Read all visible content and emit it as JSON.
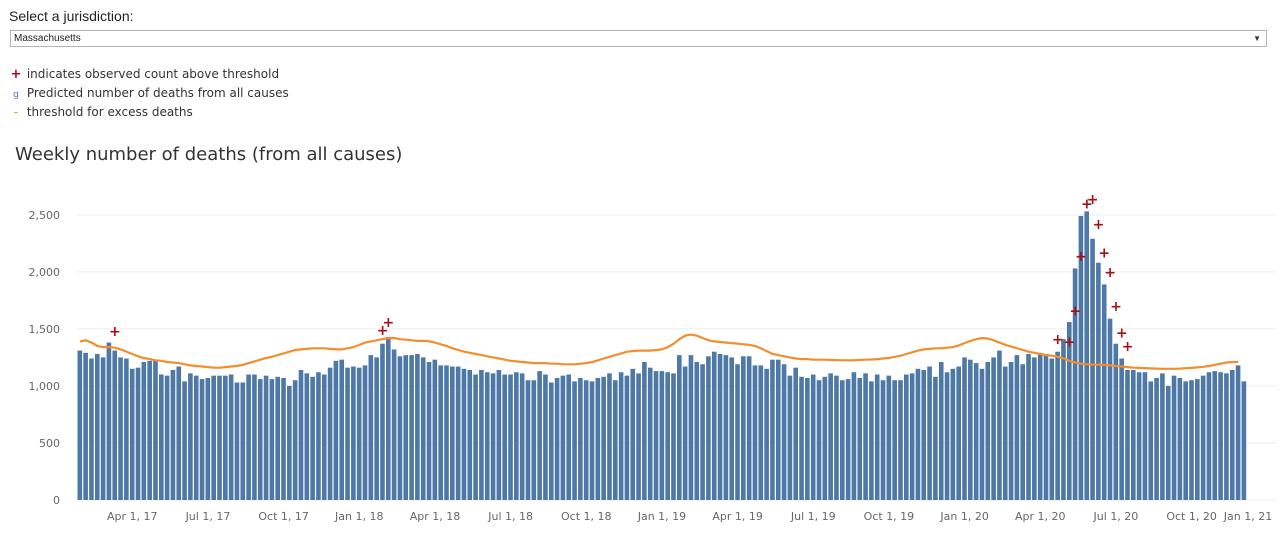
{
  "selector": {
    "label": "Select a jurisdiction:",
    "value": "Massachusetts"
  },
  "legend": [
    {
      "icon": "plus-icon",
      "symbol": "+",
      "text": "indicates observed count above threshold"
    },
    {
      "icon": "bar-swatch-icon",
      "symbol": "g",
      "text": "Predicted number of deaths from all causes"
    },
    {
      "icon": "line-swatch-icon",
      "symbol": "-",
      "text": "threshold for excess deaths"
    }
  ],
  "colors": {
    "bars": "#4e79a7",
    "threshold": "#f28e2b",
    "marker": "#a50f15"
  },
  "chart_data": {
    "type": "bar",
    "title": "Weekly number of deaths (from all causes)",
    "xlabel": "",
    "ylabel": "",
    "ylim": [
      0,
      2700
    ],
    "yticks": [
      {
        "value": 0,
        "label": "0"
      },
      {
        "value": 500,
        "label": "500"
      },
      {
        "value": 1000,
        "label": "1,000"
      },
      {
        "value": 1500,
        "label": "1,500"
      },
      {
        "value": 2000,
        "label": "2,000"
      },
      {
        "value": 2500,
        "label": "2,500"
      }
    ],
    "xticks": [
      {
        "week": 9,
        "label": "Apr 1, 17"
      },
      {
        "week": 22,
        "label": "Jul 1, 17"
      },
      {
        "week": 35,
        "label": "Oct 1, 17"
      },
      {
        "week": 48,
        "label": "Jan 1, 18"
      },
      {
        "week": 61,
        "label": "Apr 1, 18"
      },
      {
        "week": 74,
        "label": "Jul 1, 18"
      },
      {
        "week": 87,
        "label": "Oct 1, 18"
      },
      {
        "week": 100,
        "label": "Jan 1, 19"
      },
      {
        "week": 113,
        "label": "Apr 1, 19"
      },
      {
        "week": 126,
        "label": "Jul 1, 19"
      },
      {
        "week": 139,
        "label": "Oct 1, 19"
      },
      {
        "week": 152,
        "label": "Jan 1, 20"
      },
      {
        "week": 165,
        "label": "Apr 1, 20"
      },
      {
        "week": 178,
        "label": "Jul 1, 20"
      },
      {
        "week": 191,
        "label": "Oct 1, 20"
      },
      {
        "week": 204,
        "label": "Jan 1, 21"
      }
    ],
    "week_count": 206,
    "series": [
      {
        "name": "Predicted number of deaths from all causes",
        "values": [
          1310,
          1290,
          1240,
          1280,
          1250,
          1380,
          1310,
          1250,
          1240,
          1150,
          1160,
          1210,
          1220,
          1230,
          1100,
          1090,
          1140,
          1170,
          1040,
          1110,
          1090,
          1060,
          1070,
          1090,
          1090,
          1090,
          1100,
          1030,
          1030,
          1100,
          1100,
          1060,
          1090,
          1060,
          1080,
          1070,
          1000,
          1050,
          1140,
          1110,
          1080,
          1120,
          1100,
          1160,
          1220,
          1230,
          1160,
          1170,
          1160,
          1180,
          1270,
          1250,
          1370,
          1430,
          1320,
          1260,
          1270,
          1270,
          1280,
          1250,
          1210,
          1230,
          1180,
          1180,
          1170,
          1170,
          1150,
          1140,
          1100,
          1140,
          1120,
          1110,
          1140,
          1100,
          1100,
          1120,
          1110,
          1050,
          1050,
          1130,
          1100,
          1030,
          1070,
          1090,
          1100,
          1040,
          1070,
          1050,
          1040,
          1070,
          1080,
          1110,
          1050,
          1120,
          1090,
          1150,
          1110,
          1210,
          1160,
          1130,
          1130,
          1120,
          1110,
          1270,
          1170,
          1270,
          1210,
          1190,
          1260,
          1300,
          1280,
          1270,
          1250,
          1190,
          1260,
          1260,
          1180,
          1180,
          1150,
          1230,
          1230,
          1190,
          1090,
          1160,
          1080,
          1070,
          1100,
          1050,
          1080,
          1110,
          1090,
          1050,
          1060,
          1120,
          1070,
          1110,
          1040,
          1100,
          1050,
          1090,
          1050,
          1050,
          1100,
          1110,
          1150,
          1140,
          1170,
          1080,
          1210,
          1120,
          1150,
          1170,
          1250,
          1230,
          1200,
          1150,
          1210,
          1250,
          1310,
          1170,
          1210,
          1270,
          1190,
          1280,
          1250,
          1290,
          1270,
          1240,
          1300,
          1410,
          1560,
          2030,
          2490,
          2530,
          2290,
          2080,
          1890,
          1590,
          1370,
          1240,
          1140,
          1140,
          1120,
          1120,
          1040,
          1070,
          1110,
          1000,
          1090,
          1070,
          1040,
          1050,
          1060,
          1090,
          1120,
          1130,
          1120,
          1110,
          1140,
          1180,
          1040
        ]
      },
      {
        "name": "threshold for excess deaths",
        "values": [
          1390,
          1400,
          1380,
          1350,
          1340,
          1340,
          1335,
          1320,
          1300,
          1280,
          1260,
          1245,
          1235,
          1225,
          1220,
          1210,
          1205,
          1200,
          1190,
          1180,
          1175,
          1170,
          1165,
          1160,
          1160,
          1165,
          1170,
          1175,
          1185,
          1200,
          1215,
          1230,
          1245,
          1255,
          1270,
          1285,
          1300,
          1315,
          1320,
          1325,
          1330,
          1330,
          1330,
          1325,
          1320,
          1320,
          1330,
          1340,
          1360,
          1380,
          1390,
          1400,
          1410,
          1420,
          1420,
          1410,
          1405,
          1400,
          1395,
          1395,
          1390,
          1380,
          1365,
          1350,
          1330,
          1315,
          1300,
          1290,
          1280,
          1270,
          1260,
          1250,
          1240,
          1230,
          1220,
          1215,
          1210,
          1205,
          1200,
          1200,
          1200,
          1195,
          1195,
          1190,
          1190,
          1190,
          1195,
          1200,
          1210,
          1225,
          1240,
          1255,
          1270,
          1285,
          1300,
          1305,
          1310,
          1310,
          1310,
          1315,
          1320,
          1340,
          1370,
          1410,
          1440,
          1450,
          1440,
          1420,
          1400,
          1390,
          1385,
          1380,
          1375,
          1370,
          1365,
          1360,
          1350,
          1330,
          1305,
          1280,
          1270,
          1260,
          1250,
          1240,
          1235,
          1235,
          1230,
          1230,
          1230,
          1228,
          1226,
          1225,
          1224,
          1225,
          1228,
          1230,
          1232,
          1235,
          1240,
          1245,
          1255,
          1265,
          1280,
          1295,
          1310,
          1320,
          1325,
          1330,
          1330,
          1335,
          1340,
          1355,
          1375,
          1395,
          1410,
          1420,
          1415,
          1400,
          1380,
          1360,
          1345,
          1330,
          1315,
          1300,
          1290,
          1280,
          1270,
          1265,
          1255,
          1240,
          1220,
          1205,
          1195,
          1190,
          1188,
          1186,
          1185,
          1180,
          1175,
          1170,
          1165,
          1160,
          1158,
          1156,
          1154,
          1152,
          1150,
          1150,
          1150,
          1152,
          1155,
          1158,
          1162,
          1168,
          1175,
          1185,
          1195,
          1205,
          1210,
          1210
        ]
      }
    ],
    "above_threshold_markers": [
      {
        "week": 6,
        "value": 1480
      },
      {
        "week": 52,
        "value": 1490
      },
      {
        "week": 53,
        "value": 1560
      },
      {
        "week": 168,
        "value": 1410
      },
      {
        "week": 170,
        "value": 1390
      },
      {
        "week": 171,
        "value": 1660
      },
      {
        "week": 172,
        "value": 2140
      },
      {
        "week": 173,
        "value": 2600
      },
      {
        "week": 174,
        "value": 2640
      },
      {
        "week": 175,
        "value": 2420
      },
      {
        "week": 176,
        "value": 2170
      },
      {
        "week": 177,
        "value": 2000
      },
      {
        "week": 178,
        "value": 1700
      },
      {
        "week": 179,
        "value": 1470
      },
      {
        "week": 180,
        "value": 1350
      }
    ]
  }
}
